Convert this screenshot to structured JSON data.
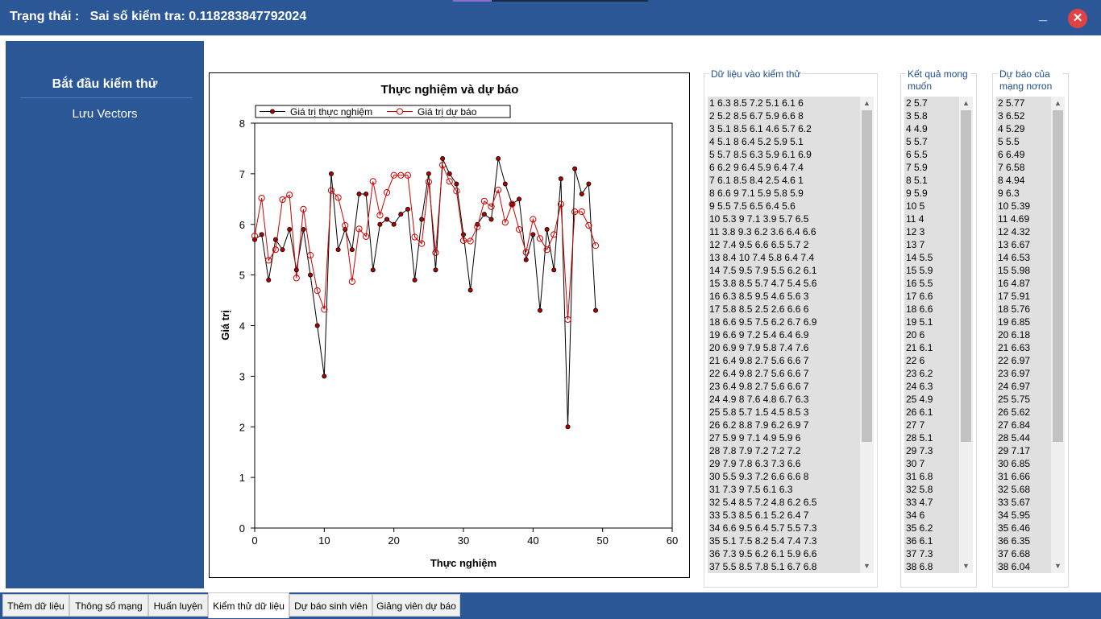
{
  "window": {
    "status_text": "Trạng thái :   Sai số kiểm tra: 0.118283847792024",
    "minimize_label": "_",
    "close_label": "✕"
  },
  "sidebar": {
    "items": [
      {
        "label": "Bắt đầu kiểm thử"
      },
      {
        "label": "Lưu Vectors"
      }
    ]
  },
  "groups": {
    "input_title": "Dữ liệu vào kiểm thử",
    "expected_title": "Kết quả mong muốn",
    "predicted_title": "Dự báo của mạng nơron"
  },
  "lists": {
    "input": [
      "1 6.3 8.5 7.2 5.1 6.1 6",
      "2 5.2 8.5 6.7 5.9 6.6 8",
      "3 5.1 8.5 6.1 4.6 5.7 6.2",
      "4 5.1 8 6.4 5.2 5.9 5.1",
      "5 5.7 8.5 6.3 5.9 6.1 6.9",
      "6 6.2 9 6.4 5.9 6.4 7.4",
      "7 6.1 8.5 8.4 2.5 4.6 1",
      "8 6.6 9 7.1 5.9 5.8 5.9",
      "9 5.5 7.5 6.5 6.4 5.6",
      "10 5.3 9 7.1 3.9 5.7 6.5",
      "11 3.8 9.3 6.2 3.6 6.4 6.6",
      "12 7.4 9.5 6.6 6.5 5.7 2",
      "13 8.4 10 7.4 5.8 6.4 7.4",
      "14 7.5 9.5 7.9 5.5 6.2 6.1",
      "15 3.8 8.5 5.7 4.7 5.4 5.6",
      "16 6.3 8.5 9.5 4.6 5.6 3",
      "17 5.8 8.5 2.5 2.6 6.6 6",
      "18 6.6 9.5 7.5 6.2 6.7 6.9",
      "19 6.6 9 7.2 5.4 6.4 6.9",
      "20 6.9 9 7.9 5.8 7.4 7.6",
      "21 6.4 9.8 2.7 5.6 6.6 7",
      "22 6.4 9.8 2.7 5.6 6.6 7",
      "23 6.4 9.8 2.7 5.6 6.6 7",
      "24 4.9 8 7.6 4.8 6.7 6.3",
      "25 5.8 5.7 1.5 4.5 8.5 3",
      "26 6.2 8.8 7.9 6.2 6.9 7",
      "27 5.9 9 7.1 4.9 5.9 6",
      "28 7.8 7.9 7.2 7.2 7.2",
      "29 7.9 7.8 6.3 7.3 6.6",
      "30 5.5 9.3 7.2 6.6 6.6 8",
      "31 7.3 9 7.5 6.1 6.3",
      "32 5.4 8.5 7.2 4.8 6.2 6.5",
      "33 5.3 8.5 6.1 5.2 6.4 7",
      "34 6.6 9.5 6.4 5.7 5.5 7.3",
      "35 5.1 7.5 8.2 5.4 7.4 7.3",
      "36 7.3 9.5 6.2 6.1 5.9 6.6",
      "37 5.5 8.5 7.8 5.1 6.7 6.8"
    ],
    "expected": [
      "2 5.7",
      "3 5.8",
      "4 4.9",
      "5 5.7",
      "6 5.5",
      "7 5.9",
      "8 5.1",
      "9 5.9",
      "10 5",
      "11 4",
      "12 3",
      "13 7",
      "14 5.5",
      "15 5.9",
      "16 5.5",
      "17 6.6",
      "18 6.6",
      "19 5.1",
      "20 6",
      "21 6.1",
      "22 6",
      "23 6.2",
      "24 6.3",
      "25 4.9",
      "26 6.1",
      "27 7",
      "28 5.1",
      "29 7.3",
      "30 7",
      "31 6.8",
      "32 5.8",
      "33 4.7",
      "34 6",
      "35 6.2",
      "36 6.1",
      "37 7.3",
      "38 6.8"
    ],
    "predicted": [
      "2 5.77",
      "3 6.52",
      "4 5.29",
      "5 5.5",
      "6 6.49",
      "7 6.58",
      "8 4.94",
      "9 6.3",
      "10 5.39",
      "11 4.69",
      "12 4.32",
      "13 6.67",
      "14 6.53",
      "15 5.98",
      "16 4.87",
      "17 5.91",
      "18 5.76",
      "19 6.85",
      "20 6.18",
      "21 6.63",
      "22 6.97",
      "23 6.97",
      "24 6.97",
      "25 5.75",
      "26 5.62",
      "27 6.84",
      "28 5.44",
      "29 7.17",
      "30 6.85",
      "31 6.66",
      "32 5.68",
      "33 5.67",
      "34 5.95",
      "35 6.46",
      "36 6.35",
      "37 6.68",
      "38 6.04"
    ]
  },
  "tabs": [
    {
      "label": "Thêm dữ liệu"
    },
    {
      "label": "Thông số mạng"
    },
    {
      "label": "Huấn luyện"
    },
    {
      "label": "Kiểm thử dữ liệu",
      "active": true
    },
    {
      "label": "Dự báo sinh viên"
    },
    {
      "label": "Giảng viên dự báo"
    }
  ],
  "colors": {
    "chrome": "#2b5797",
    "series_actual": "#000000",
    "series_predicted": "#d00000",
    "marker_actual": "#b00000"
  },
  "chart_data": {
    "type": "line",
    "title": "Thực nghiệm và dự báo",
    "xlabel": "Thực nghiệm",
    "ylabel": "Giá trị",
    "xlim": [
      0,
      60
    ],
    "ylim": [
      0,
      8
    ],
    "xticks": [
      0,
      10,
      20,
      30,
      40,
      50,
      60
    ],
    "yticks": [
      0,
      1,
      2,
      3,
      4,
      5,
      6,
      7,
      8
    ],
    "legend_position": "top-left",
    "grid": false,
    "series": [
      {
        "name": "Giá trị thực nghiệm",
        "marker": "filled-circle",
        "x": [
          0,
          1,
          2,
          3,
          4,
          5,
          6,
          7,
          8,
          9,
          10,
          11,
          12,
          13,
          14,
          15,
          16,
          17,
          18,
          19,
          20,
          21,
          22,
          23,
          24,
          25,
          26,
          27,
          28,
          29,
          30,
          31,
          32,
          33,
          34,
          35,
          36,
          37,
          38,
          39,
          40,
          41,
          42,
          43,
          44,
          45,
          46,
          47,
          48,
          49
        ],
        "y": [
          5.7,
          5.8,
          4.9,
          5.7,
          5.5,
          5.9,
          5.1,
          5.9,
          5.0,
          4.0,
          3.0,
          7.0,
          5.5,
          5.9,
          5.5,
          6.6,
          6.6,
          5.1,
          6.0,
          6.1,
          6.0,
          6.2,
          6.3,
          4.9,
          6.1,
          7.0,
          5.1,
          7.3,
          7.0,
          6.8,
          5.8,
          4.7,
          6.0,
          6.2,
          6.1,
          7.3,
          6.8,
          6.4,
          6.5,
          5.3,
          5.8,
          4.3,
          5.9,
          5.1,
          6.9,
          2.0,
          7.1,
          6.6,
          6.8,
          4.3
        ]
      },
      {
        "name": "Giá trị dự báo",
        "marker": "open-circle",
        "x": [
          0,
          1,
          2,
          3,
          4,
          5,
          6,
          7,
          8,
          9,
          10,
          11,
          12,
          13,
          14,
          15,
          16,
          17,
          18,
          19,
          20,
          21,
          22,
          23,
          24,
          25,
          26,
          27,
          28,
          29,
          30,
          31,
          32,
          33,
          34,
          35,
          36,
          37,
          38,
          39,
          40,
          41,
          42,
          43,
          44,
          45,
          46,
          47,
          48,
          49
        ],
        "y": [
          5.77,
          6.52,
          5.29,
          5.5,
          6.49,
          6.58,
          4.94,
          6.3,
          5.39,
          4.69,
          4.32,
          6.67,
          6.53,
          5.98,
          4.87,
          5.91,
          5.76,
          6.85,
          6.18,
          6.63,
          6.97,
          6.97,
          6.97,
          5.75,
          5.62,
          6.84,
          5.44,
          7.17,
          6.85,
          6.66,
          5.68,
          5.67,
          5.95,
          6.46,
          6.35,
          6.68,
          6.04,
          6.4,
          5.9,
          5.45,
          6.1,
          5.72,
          5.5,
          5.8,
          6.4,
          4.12,
          6.25,
          6.25,
          5.98,
          5.58
        ]
      }
    ]
  }
}
